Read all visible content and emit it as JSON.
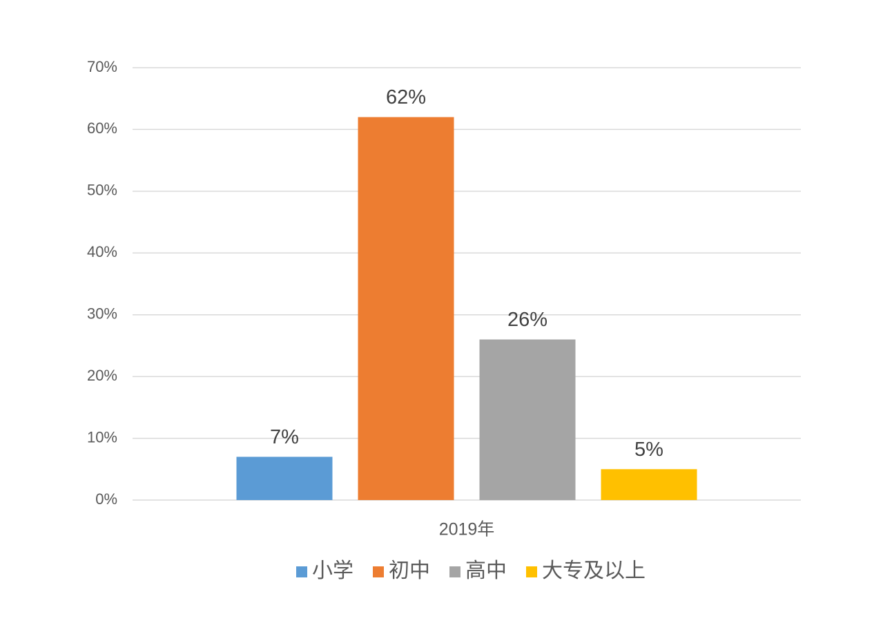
{
  "chart_data": {
    "type": "bar",
    "categories": [
      "2019年"
    ],
    "series": [
      {
        "name": "小学",
        "color": "#5b9bd5",
        "values": [
          7
        ],
        "value_labels": [
          "7%"
        ]
      },
      {
        "name": "初中",
        "color": "#ed7d31",
        "values": [
          62
        ],
        "value_labels": [
          "62%"
        ]
      },
      {
        "name": "高中",
        "color": "#a5a5a5",
        "values": [
          26
        ],
        "value_labels": [
          "26%"
        ]
      },
      {
        "name": "大专及以上",
        "color": "#ffc000",
        "values": [
          5
        ],
        "value_labels": [
          "5%"
        ]
      }
    ],
    "ylim": [
      0,
      70
    ],
    "yticks": [
      {
        "value": 0,
        "label": "0%"
      },
      {
        "value": 10,
        "label": "10%"
      },
      {
        "value": 20,
        "label": "20%"
      },
      {
        "value": 30,
        "label": "30%"
      },
      {
        "value": 40,
        "label": "40%"
      },
      {
        "value": 50,
        "label": "50%"
      },
      {
        "value": 60,
        "label": "60%"
      },
      {
        "value": 70,
        "label": "70%"
      }
    ],
    "grid": true,
    "legend": "bottom"
  }
}
